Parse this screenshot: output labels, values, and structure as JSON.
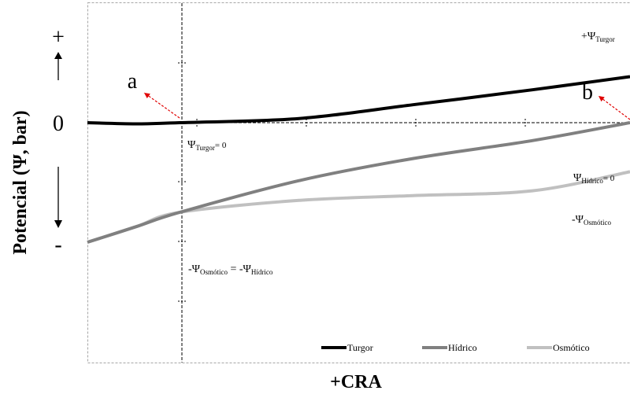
{
  "chart_data": {
    "type": "line",
    "ylabel": "Potencial (Ψ, bar)",
    "xlabel": "+CRA",
    "y_axis_markers": {
      "plus": "+",
      "zero": "0",
      "minus": "-"
    },
    "annotations": {
      "a": "a",
      "b": "b",
      "psi_turgor_zero": {
        "base": "Ψ",
        "sub": "Turgor",
        "suffix": "= 0"
      },
      "psi_hidrico_zero": {
        "base": "Ψ",
        "sub": "Hídrico",
        "suffix": "= 0"
      },
      "psi_turgor_plus": {
        "prefix": "+",
        "base": "Ψ",
        "sub": "Turgor"
      },
      "psi_osmotico_minus": {
        "prefix": "-",
        "base": "Ψ",
        "sub": "Osmótico"
      },
      "equality": {
        "lhs_prefix": "-Ψ",
        "lhs_sub": "Osmótico",
        "mid": " = -Ψ",
        "rhs_sub": "Hídrico"
      }
    },
    "legend": {
      "position": "bottom-right",
      "entries": [
        "Turgor",
        "Hídrico",
        "Osmótico"
      ]
    },
    "series": [
      {
        "name": "Turgor",
        "color": "#000000",
        "x": [
          0,
          0.09,
          0.17,
          0.39,
          0.6,
          0.82,
          1.0
        ],
        "y": [
          0,
          -0.02,
          0,
          0.07,
          0.3,
          0.55,
          0.77
        ]
      },
      {
        "name": "Hídrico",
        "color": "#808080",
        "x": [
          0,
          0.09,
          0.17,
          0.39,
          0.6,
          0.82,
          1.0
        ],
        "y": [
          -2.0,
          -1.74,
          -1.5,
          -0.97,
          -0.6,
          -0.3,
          0
        ]
      },
      {
        "name": "Osmótico",
        "color": "#c0c0c0",
        "x": [
          0,
          0.09,
          0.17,
          0.39,
          0.6,
          0.82,
          1.0
        ],
        "y": [
          -2.0,
          -1.74,
          -1.5,
          -1.3,
          -1.22,
          -1.14,
          -0.82
        ]
      }
    ],
    "xlim": [
      0,
      1
    ],
    "ylim": [
      -2.7,
      1.3
    ],
    "grid": false
  }
}
